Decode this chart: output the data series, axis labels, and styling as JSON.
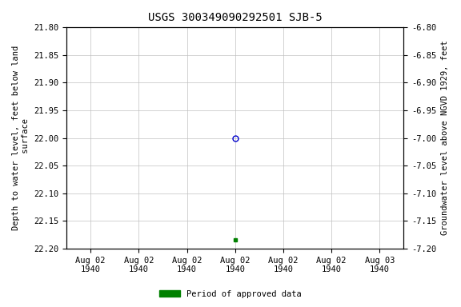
{
  "title": "USGS 300349090292501 SJB-5",
  "ylabel_left": "Depth to water level, feet below land\n surface",
  "ylabel_right": "Groundwater level above NGVD 1929, feet",
  "ylim_left": [
    22.2,
    21.8
  ],
  "ylim_right": [
    -7.2,
    -6.8
  ],
  "yticks_left": [
    21.8,
    21.85,
    21.9,
    21.95,
    22.0,
    22.05,
    22.1,
    22.15,
    22.2
  ],
  "yticks_right": [
    -6.8,
    -6.85,
    -6.9,
    -6.95,
    -7.0,
    -7.05,
    -7.1,
    -7.15,
    -7.2
  ],
  "data_point_x": "1940-08-02",
  "data_point_y": 22.0,
  "data_point_color": "#0000cc",
  "data_point_marker": "o",
  "data_point_fillstyle": "none",
  "data_point2_x": "1940-08-02",
  "data_point2_y": 22.185,
  "data_point2_color": "#008000",
  "data_point2_marker": "s",
  "data_point2_size": 3,
  "background_color": "#ffffff",
  "grid_color": "#c0c0c0",
  "title_fontsize": 10,
  "axis_fontsize": 7.5,
  "tick_fontsize": 7.5,
  "legend_label": "Period of approved data",
  "legend_color": "#008000",
  "x_num_ticks": 7,
  "x_tick_labels": [
    "Aug 02\n1940",
    "Aug 02\n1940",
    "Aug 02\n1940",
    "Aug 02\n1940",
    "Aug 02\n1940",
    "Aug 02\n1940",
    "Aug 03\n1940"
  ],
  "data_x_tick_index": 3,
  "x_range_days": 1.0
}
